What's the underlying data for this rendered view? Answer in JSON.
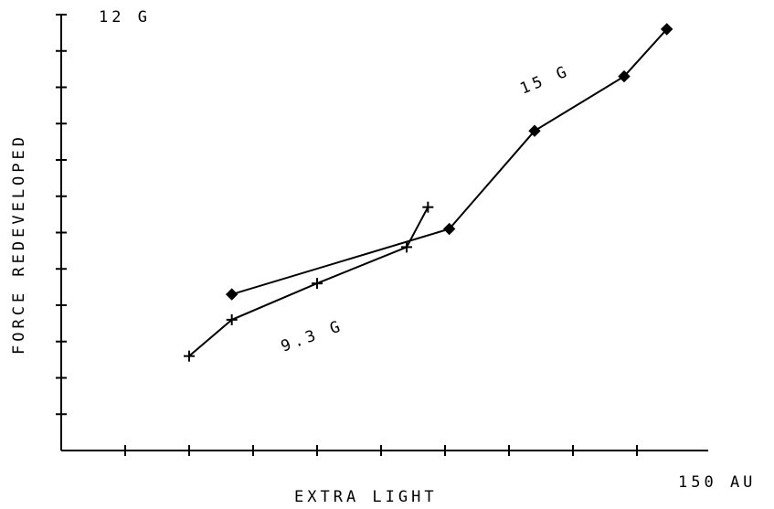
{
  "chart_data": {
    "type": "line",
    "xlabel": "EXTRA LIGHT",
    "ylabel": "FORCE REDEVELOPED",
    "x_max_label": "150 AU",
    "y_max_label": "12 G",
    "xlim": [
      0,
      150
    ],
    "ylim": [
      0,
      12
    ],
    "x_ticks": [
      15,
      30,
      45,
      60,
      75,
      90,
      105,
      120,
      135
    ],
    "y_ticks": [
      1,
      2,
      3,
      4,
      5,
      6,
      7,
      8,
      9,
      10,
      11,
      12
    ],
    "series": [
      {
        "name": "9.3 G",
        "marker": "plus",
        "x": [
          30,
          40,
          60,
          81,
          86
        ],
        "y": [
          2.6,
          3.6,
          4.6,
          5.6,
          6.7
        ]
      },
      {
        "name": "15 G",
        "marker": "diamond",
        "x": [
          40,
          91,
          111,
          132,
          142
        ],
        "y": [
          4.3,
          6.1,
          8.8,
          10.3,
          11.6
        ]
      }
    ]
  }
}
